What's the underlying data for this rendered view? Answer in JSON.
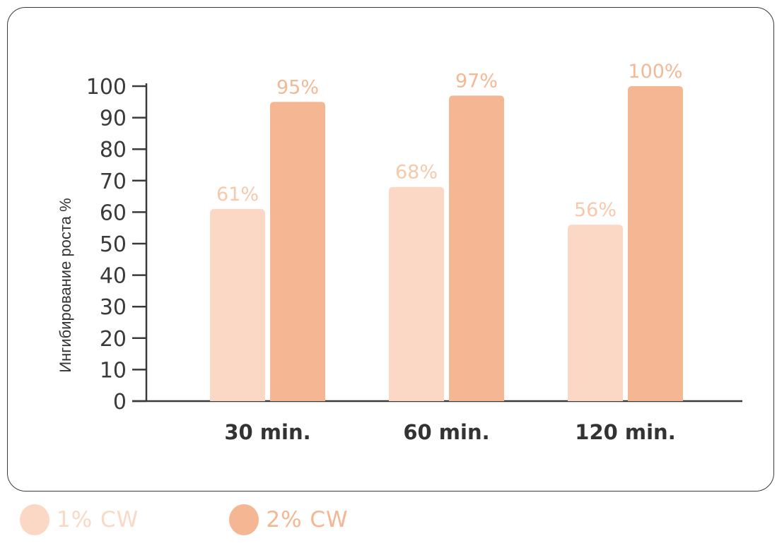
{
  "colors": {
    "series_1": "#fbd8c5",
    "series_2": "#f4b693",
    "label_1": "#f6c9ad",
    "label_2": "#f3b996",
    "axis": "#3a3a3a"
  },
  "chart_data": {
    "type": "bar",
    "title": "",
    "xlabel": "",
    "ylabel": "Ингибирование роста %",
    "ylim": [
      0,
      100
    ],
    "yticks": [
      0,
      10,
      20,
      30,
      40,
      50,
      60,
      70,
      80,
      90,
      100
    ],
    "categories": [
      "30 min.",
      "60 min.",
      "120 min."
    ],
    "series": [
      {
        "name": "1% CW",
        "values": [
          61,
          68,
          56
        ],
        "labels": [
          "61%",
          "68%",
          "56%"
        ]
      },
      {
        "name": "2% CW",
        "values": [
          95,
          97,
          100
        ],
        "labels": [
          "95%",
          "97%",
          "100%"
        ]
      }
    ],
    "grid": false,
    "legend_position": "bottom-left"
  },
  "legend": {
    "items": [
      {
        "label": "1% CW",
        "color_key": "series_1"
      },
      {
        "label": "2% CW",
        "color_key": "series_2"
      }
    ]
  }
}
